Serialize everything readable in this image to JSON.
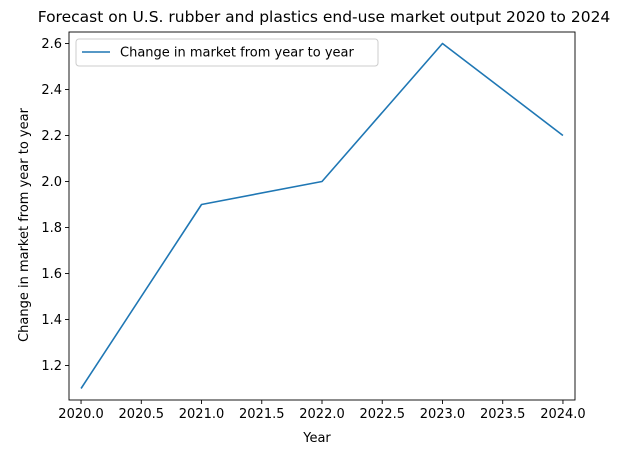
{
  "chart_data": {
    "type": "line",
    "title": "Forecast on U.S. rubber and plastics end-use market output 2020 to 2024",
    "xlabel": "Year",
    "ylabel": "Change in market from year to year",
    "x": [
      2020,
      2021,
      2022,
      2023,
      2024
    ],
    "series": [
      {
        "name": "Change in market from year to year",
        "values": [
          1.1,
          1.9,
          2.0,
          2.6,
          2.2
        ]
      }
    ],
    "xlim": [
      2019.9,
      2024.1
    ],
    "ylim": [
      1.05,
      2.65
    ],
    "xticks": [
      2020.0,
      2020.5,
      2021.0,
      2021.5,
      2022.0,
      2022.5,
      2023.0,
      2023.5,
      2024.0
    ],
    "xtick_labels": [
      "2020.0",
      "2020.5",
      "2021.0",
      "2021.5",
      "2022.0",
      "2022.5",
      "2023.0",
      "2023.5",
      "2024.0"
    ],
    "yticks": [
      1.2,
      1.4,
      1.6,
      1.8,
      2.0,
      2.2,
      2.4,
      2.6
    ],
    "ytick_labels": [
      "1.2",
      "1.4",
      "1.6",
      "1.8",
      "2.0",
      "2.2",
      "2.4",
      "2.6"
    ],
    "grid": false,
    "legend_position": "top-left",
    "line_color": "#1f77b4"
  }
}
